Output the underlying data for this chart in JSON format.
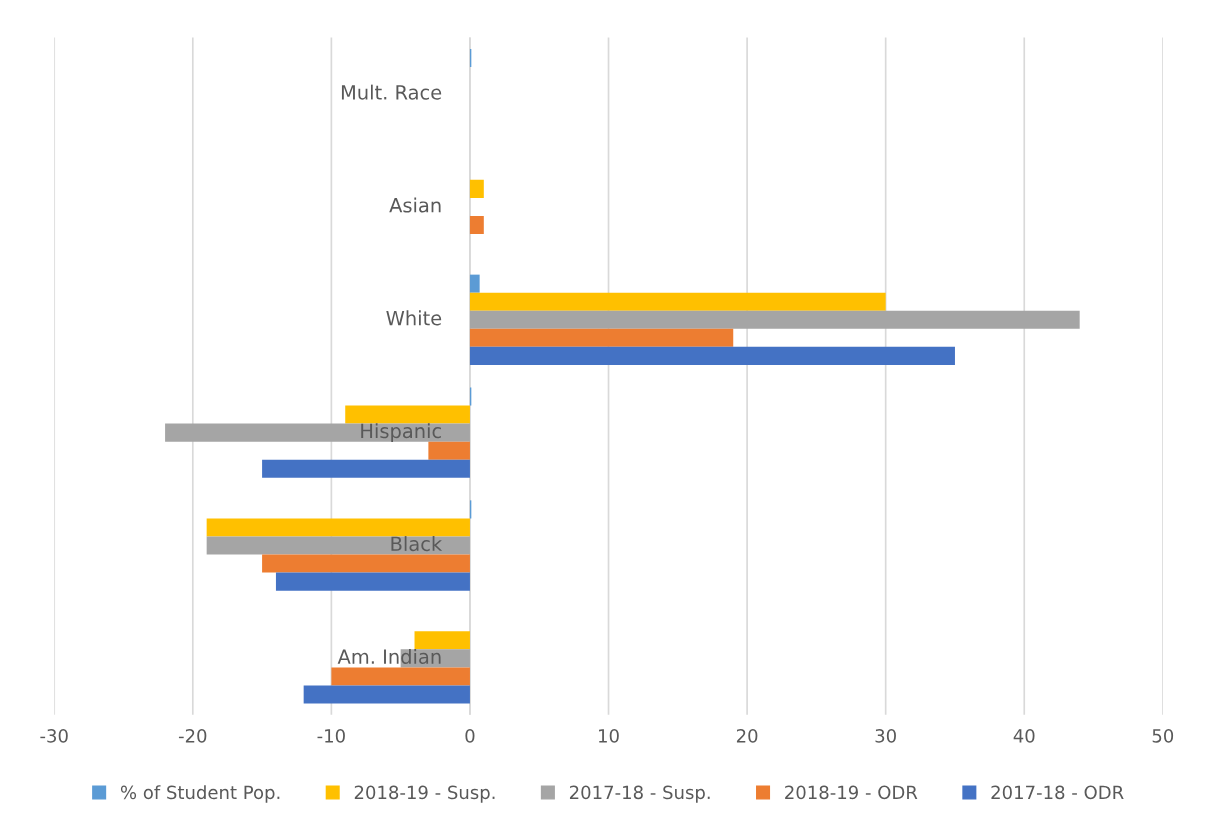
{
  "chart_data": {
    "type": "bar",
    "orientation": "horizontal",
    "categories": [
      "Mult. Race",
      "Asian",
      "White",
      "Hispanic",
      "Black",
      "Am. Indian"
    ],
    "series": [
      {
        "name": "% of Student Pop.",
        "color": "#5b9bd5",
        "values": [
          0.1,
          null,
          0.7,
          0.1,
          0.1,
          null
        ]
      },
      {
        "name": "2018-19 - Susp.",
        "color": "#ffc000",
        "values": [
          null,
          1,
          30,
          -9,
          -19,
          -4
        ]
      },
      {
        "name": "2017-18 - Susp.",
        "color": "#a5a5a5",
        "values": [
          null,
          null,
          44,
          -22,
          -19,
          -5
        ]
      },
      {
        "name": "2018-19 - ODR",
        "color": "#ed7d31",
        "values": [
          null,
          1,
          19,
          -3,
          -15,
          -10
        ]
      },
      {
        "name": "2017-18 - ODR",
        "color": "#4472c4",
        "values": [
          null,
          null,
          35,
          -15,
          -14,
          -12
        ]
      }
    ],
    "xlim": [
      -30,
      50
    ],
    "xticks": [
      -30,
      -20,
      -10,
      0,
      10,
      20,
      30,
      40,
      50
    ],
    "grid": "x",
    "legend": "bottom"
  }
}
